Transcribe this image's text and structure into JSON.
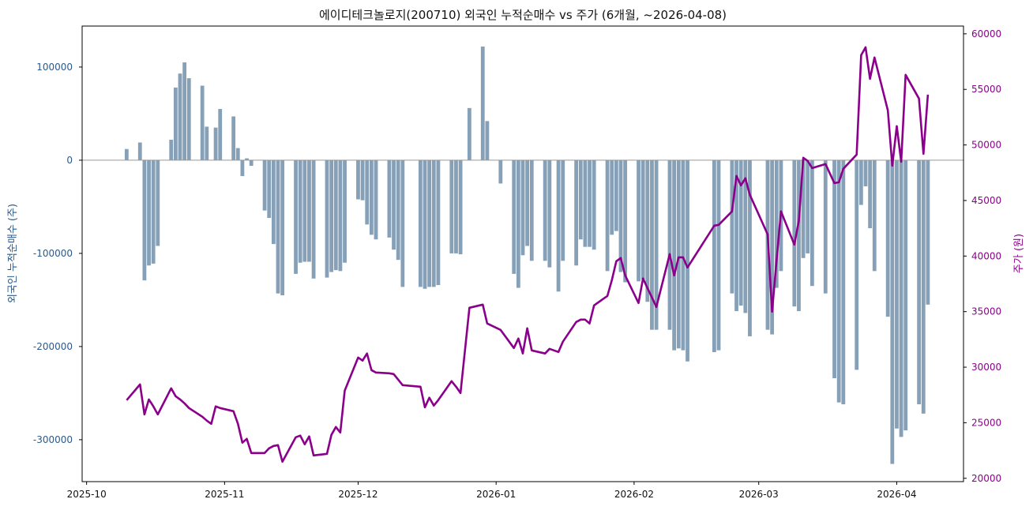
{
  "chart_data": {
    "type": "bar+line",
    "title": "에이디테크놀로지(200710) 외국인 누적순매수 vs 주가 (6개월, ~2026-04-08)",
    "ylabel_left": "외국인 누적순매수 (주)",
    "ylabel_right": "주가 (원)",
    "ylim_left": [
      -345000,
      144000
    ],
    "ylim_right": [
      19700,
      60700
    ],
    "xlim": [
      "2025-09-30",
      "2026-04-16"
    ],
    "yticks_left": [
      -300000,
      -200000,
      -100000,
      0,
      100000
    ],
    "yticks_right": [
      20000,
      25000,
      30000,
      35000,
      40000,
      45000,
      50000,
      55000,
      60000
    ],
    "xticks": [
      "2025-10",
      "2025-11",
      "2025-12",
      "2026-01",
      "2026-02",
      "2026-03",
      "2026-04"
    ],
    "grid": false,
    "colors": {
      "bars": "#86a0b7",
      "line": "#8b008b",
      "left_axis": "#2b5a8a",
      "right_axis": "#8b008b",
      "zero_line": "#999999"
    },
    "dates": [
      "2025-10-10",
      "2025-10-13",
      "2025-10-14",
      "2025-10-15",
      "2025-10-16",
      "2025-10-17",
      "2025-10-20",
      "2025-10-21",
      "2025-10-22",
      "2025-10-23",
      "2025-10-24",
      "2025-10-27",
      "2025-10-28",
      "2025-10-29",
      "2025-10-30",
      "2025-10-31",
      "2025-11-03",
      "2025-11-04",
      "2025-11-05",
      "2025-11-06",
      "2025-11-07",
      "2025-11-10",
      "2025-11-11",
      "2025-11-12",
      "2025-11-13",
      "2025-11-14",
      "2025-11-17",
      "2025-11-18",
      "2025-11-19",
      "2025-11-20",
      "2025-11-21",
      "2025-11-24",
      "2025-11-25",
      "2025-11-26",
      "2025-11-27",
      "2025-11-28",
      "2025-12-01",
      "2025-12-02",
      "2025-12-03",
      "2025-12-04",
      "2025-12-05",
      "2025-12-08",
      "2025-12-09",
      "2025-12-10",
      "2025-12-11",
      "2025-12-15",
      "2025-12-16",
      "2025-12-17",
      "2025-12-18",
      "2025-12-19",
      "2025-12-22",
      "2025-12-23",
      "2025-12-24",
      "2025-12-26",
      "2025-12-29",
      "2025-12-30",
      "2026-01-02",
      "2026-01-05",
      "2026-01-06",
      "2026-01-07",
      "2026-01-08",
      "2026-01-09",
      "2026-01-12",
      "2026-01-13",
      "2026-01-15",
      "2026-01-16",
      "2026-01-19",
      "2026-01-20",
      "2026-01-21",
      "2026-01-22",
      "2026-01-23",
      "2026-01-26",
      "2026-01-27",
      "2026-01-28",
      "2026-01-29",
      "2026-01-30",
      "2026-02-02",
      "2026-02-03",
      "2026-02-04",
      "2026-02-05",
      "2026-02-06",
      "2026-02-09",
      "2026-02-10",
      "2026-02-11",
      "2026-02-12",
      "2026-02-13",
      "2026-02-19",
      "2026-02-20",
      "2026-02-23",
      "2026-02-24",
      "2026-02-25",
      "2026-02-26",
      "2026-02-27",
      "2026-03-03",
      "2026-03-04",
      "2026-03-05",
      "2026-03-06",
      "2026-03-09",
      "2026-03-10",
      "2026-03-11",
      "2026-03-12",
      "2026-03-13",
      "2026-03-16",
      "2026-03-18",
      "2026-03-19",
      "2026-03-20",
      "2026-03-23",
      "2026-03-24",
      "2026-03-25",
      "2026-03-26",
      "2026-03-27",
      "2026-03-30",
      "2026-03-31",
      "2026-04-01",
      "2026-04-02",
      "2026-04-03",
      "2026-04-06",
      "2026-04-07",
      "2026-04-08"
    ],
    "net_buy": [
      12000,
      19000,
      -129000,
      -113000,
      -111000,
      -92000,
      22000,
      78000,
      93000,
      105000,
      88000,
      80000,
      36000,
      0,
      35000,
      55000,
      47000,
      13000,
      -17000,
      2000,
      -6000,
      -54000,
      -62000,
      -90000,
      -143000,
      -145000,
      -122000,
      -110000,
      -109000,
      -109000,
      -127000,
      -126000,
      -120000,
      -118000,
      -119000,
      -110000,
      -42000,
      -43000,
      -69000,
      -80000,
      -85000,
      -83000,
      -96000,
      -107000,
      -136000,
      -136000,
      -138000,
      -136000,
      -136000,
      -134000,
      -100000,
      -100000,
      -101000,
      56000,
      122000,
      42000,
      -25000,
      -122000,
      -137000,
      -102000,
      -92000,
      -108000,
      -108000,
      -115000,
      -141000,
      -108000,
      -113000,
      -85000,
      -93000,
      -93000,
      -96000,
      -119000,
      -80000,
      -76000,
      -120000,
      -131000,
      -130000,
      -128000,
      -152000,
      -182000,
      -182000,
      -182000,
      -204000,
      -202000,
      -204000,
      -216000,
      -206000,
      -204000,
      -143000,
      -162000,
      -156000,
      -164000,
      -189000,
      -182000,
      -187000,
      -137000,
      -119000,
      -157000,
      -162000,
      -105000,
      -100000,
      -135000,
      -143000,
      -234000,
      -260000,
      -262000,
      -225000,
      -48000,
      -28000,
      -73000,
      -119000,
      -168000,
      -326000,
      -288000,
      -297000,
      -290000,
      -262000,
      -272000,
      -155000
    ],
    "price": [
      27030,
      28450,
      25750,
      27100,
      26470,
      25750,
      28100,
      27390,
      27100,
      26750,
      26320,
      25540,
      25190,
      24900,
      26470,
      26320,
      26040,
      24900,
      23200,
      23550,
      22270,
      22270,
      22700,
      22910,
      22980,
      21490,
      23690,
      23840,
      23060,
      23770,
      22060,
      22200,
      23910,
      24620,
      24120,
      27890,
      30870,
      30590,
      31230,
      29730,
      29520,
      29450,
      29380,
      28880,
      28380,
      28240,
      26390,
      27250,
      26540,
      27030,
      28740,
      28240,
      27670,
      35350,
      35630,
      33930,
      33360,
      31720,
      32580,
      31230,
      33500,
      31510,
      31230,
      31650,
      31370,
      32290,
      34070,
      34280,
      34280,
      33930,
      35560,
      36410,
      37830,
      39540,
      39820,
      38260,
      35770,
      37980,
      37120,
      36270,
      35420,
      40180,
      38260,
      39890,
      39890,
      38970,
      42740,
      42810,
      44020,
      47210,
      46360,
      47000,
      45510,
      41950,
      34990,
      39600,
      44020,
      41030,
      43160,
      48850,
      48560,
      47920,
      48280,
      46570,
      46640,
      47850,
      49130,
      58080,
      58790,
      55950,
      57870,
      53110,
      48140,
      51690,
      48490,
      56310,
      54180,
      49200,
      54530
    ]
  }
}
